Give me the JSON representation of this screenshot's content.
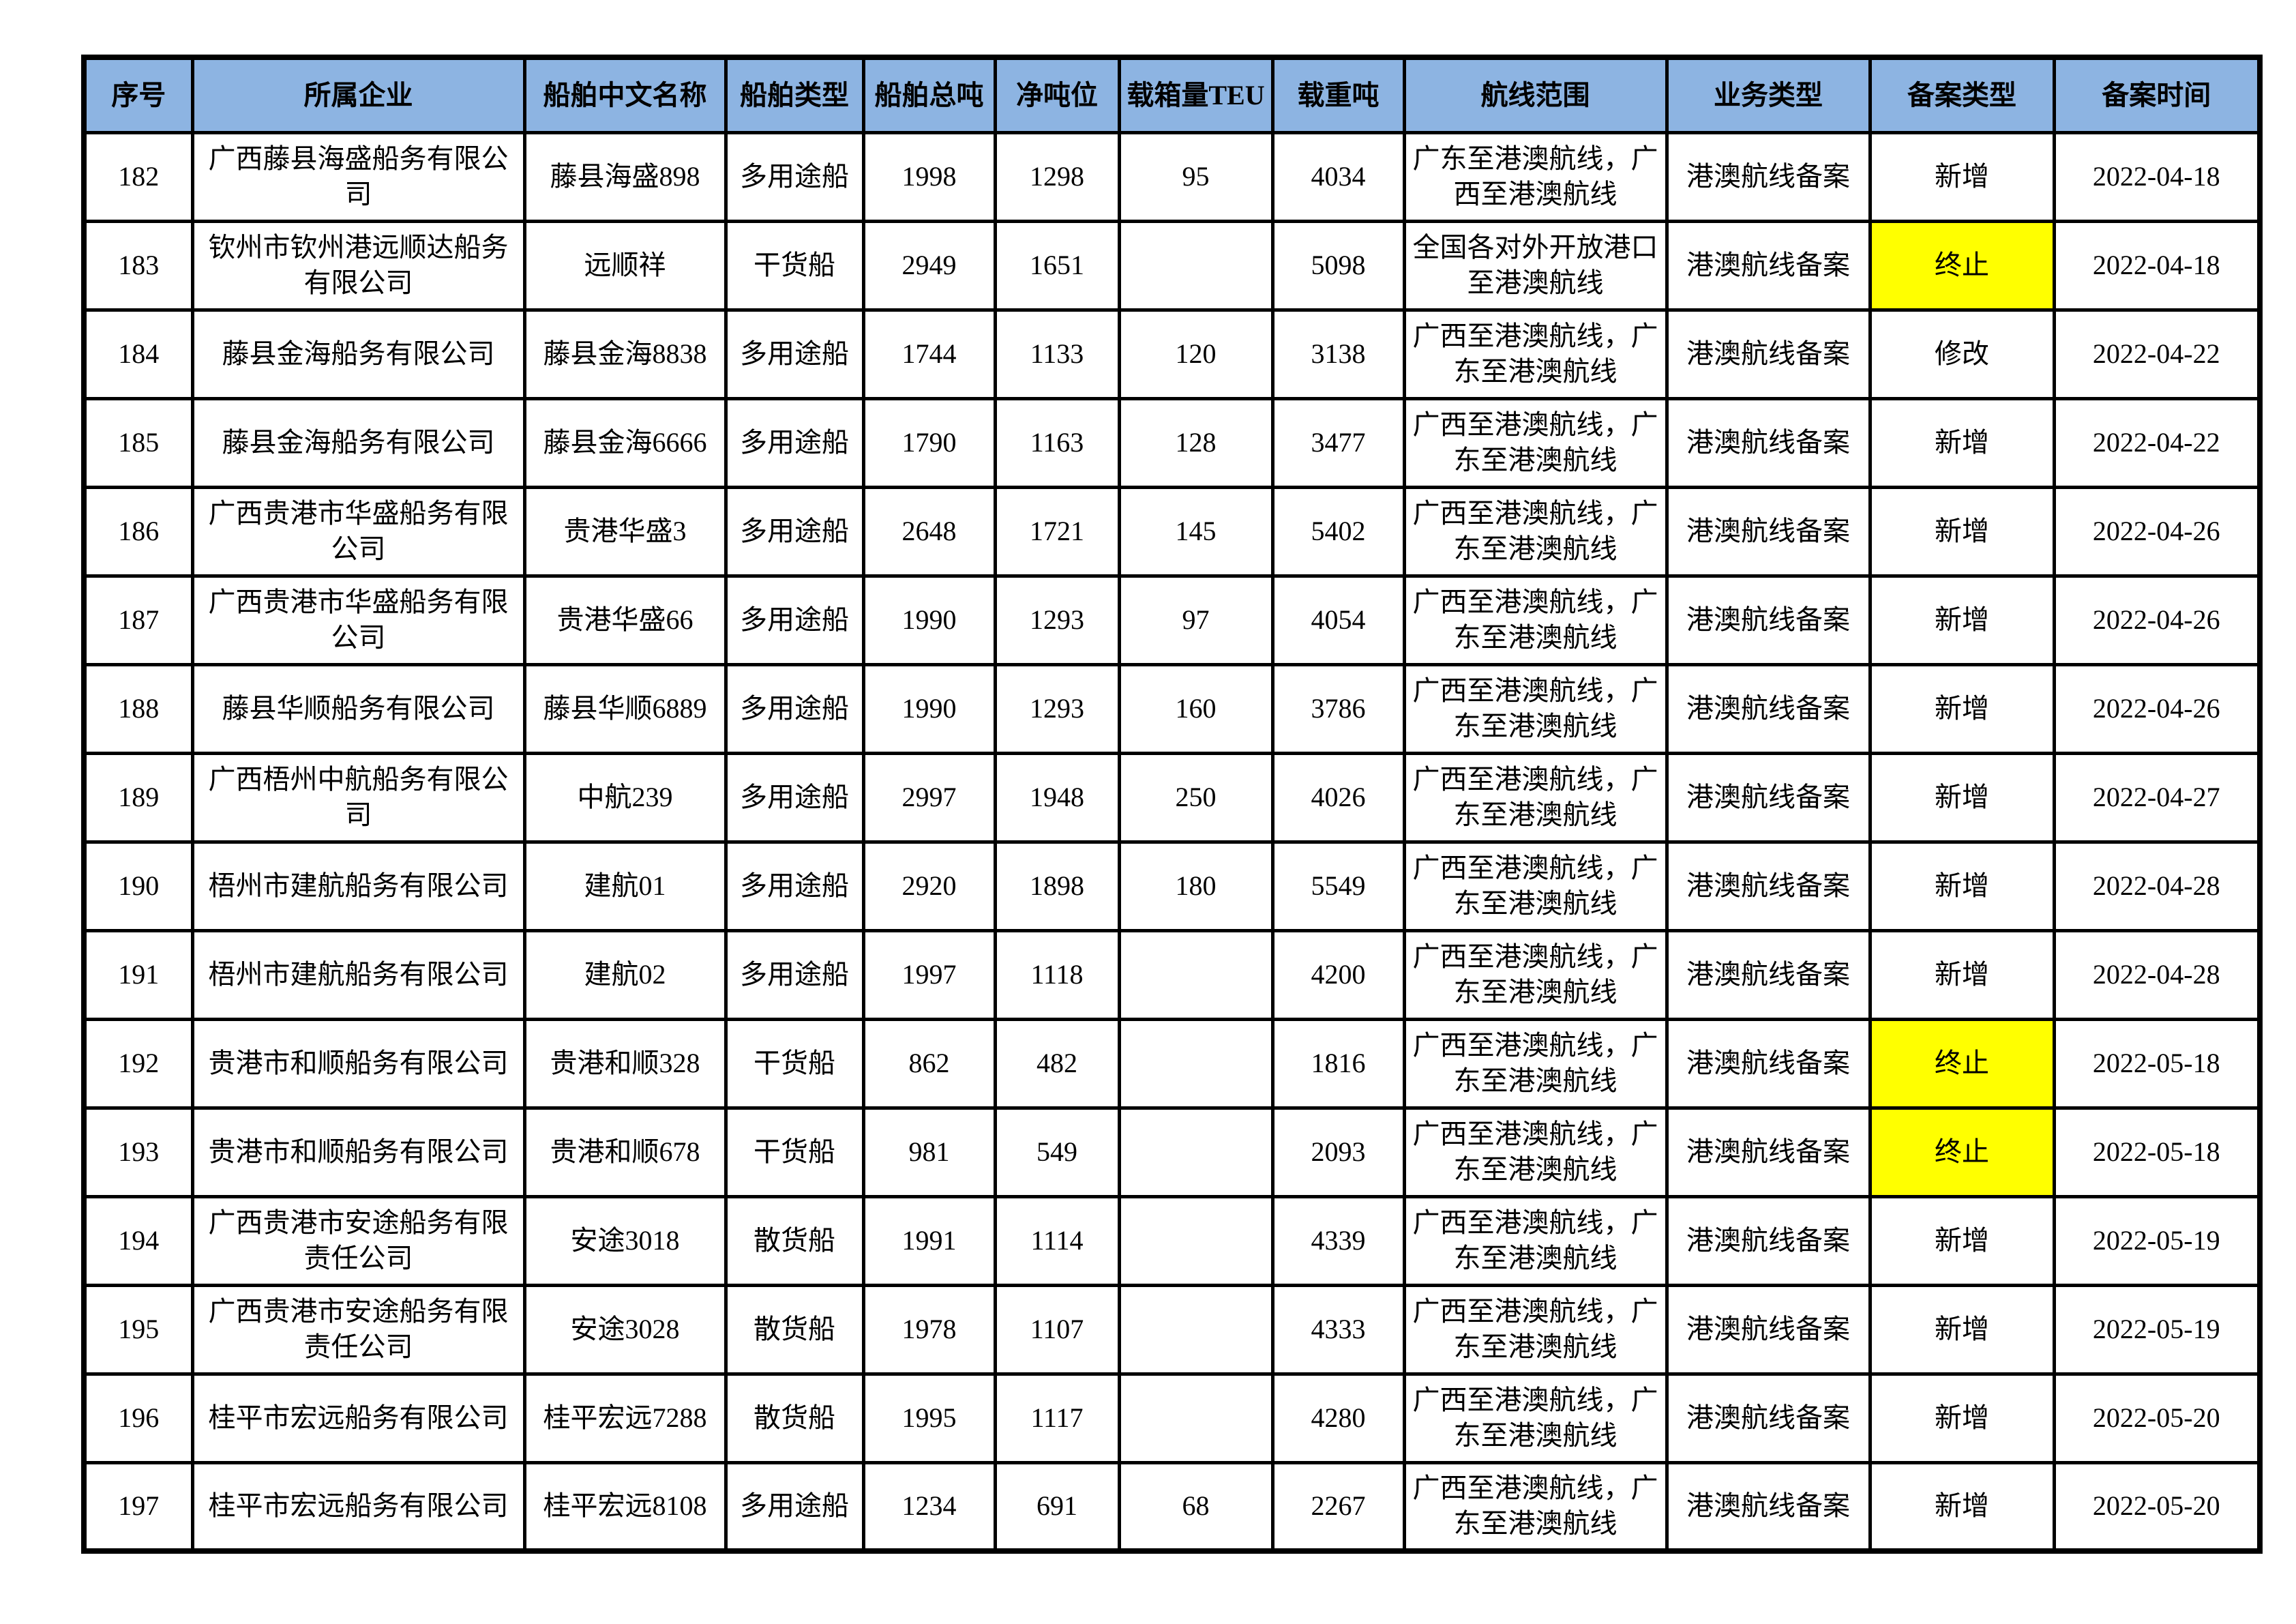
{
  "table": {
    "header_bg": "#8DB4E2",
    "highlight_color": "#FFFF00",
    "columns": [
      {
        "key": "seq",
        "label": "序号"
      },
      {
        "key": "company",
        "label": "所属企业"
      },
      {
        "key": "ship_name",
        "label": "船舶中文名称"
      },
      {
        "key": "ship_type",
        "label": "船舶类型"
      },
      {
        "key": "gross_tonnage",
        "label": "船舶总吨"
      },
      {
        "key": "net_tonnage",
        "label": "净吨位"
      },
      {
        "key": "teu",
        "label": "载箱量TEU"
      },
      {
        "key": "dwt",
        "label": "载重吨"
      },
      {
        "key": "route",
        "label": "航线范围"
      },
      {
        "key": "business_type",
        "label": "业务类型"
      },
      {
        "key": "filing_type",
        "label": "备案类型"
      },
      {
        "key": "filing_date",
        "label": "备案时间"
      }
    ],
    "rows": [
      {
        "seq": "182",
        "company": "广西藤县海盛船务有限公司",
        "ship_name": "藤县海盛898",
        "ship_type": "多用途船",
        "gross_tonnage": "1998",
        "net_tonnage": "1298",
        "teu": "95",
        "dwt": "4034",
        "route": "广东至港澳航线，广西至港澳航线",
        "business_type": "港澳航线备案",
        "filing_type": "新增",
        "filing_highlight": false,
        "filing_date": "2022-04-18"
      },
      {
        "seq": "183",
        "company": "钦州市钦州港远顺达船务有限公司",
        "ship_name": "远顺祥",
        "ship_type": "干货船",
        "gross_tonnage": "2949",
        "net_tonnage": "1651",
        "teu": "",
        "dwt": "5098",
        "route": "全国各对外开放港口至港澳航线",
        "business_type": "港澳航线备案",
        "filing_type": "终止",
        "filing_highlight": true,
        "filing_date": "2022-04-18"
      },
      {
        "seq": "184",
        "company": "藤县金海船务有限公司",
        "ship_name": "藤县金海8838",
        "ship_type": "多用途船",
        "gross_tonnage": "1744",
        "net_tonnage": "1133",
        "teu": "120",
        "dwt": "3138",
        "route": "广西至港澳航线，广东至港澳航线",
        "business_type": "港澳航线备案",
        "filing_type": "修改",
        "filing_highlight": false,
        "filing_date": "2022-04-22"
      },
      {
        "seq": "185",
        "company": "藤县金海船务有限公司",
        "ship_name": "藤县金海6666",
        "ship_type": "多用途船",
        "gross_tonnage": "1790",
        "net_tonnage": "1163",
        "teu": "128",
        "dwt": "3477",
        "route": "广西至港澳航线，广东至港澳航线",
        "business_type": "港澳航线备案",
        "filing_type": "新增",
        "filing_highlight": false,
        "filing_date": "2022-04-22"
      },
      {
        "seq": "186",
        "company": "广西贵港市华盛船务有限公司",
        "ship_name": "贵港华盛3",
        "ship_type": "多用途船",
        "gross_tonnage": "2648",
        "net_tonnage": "1721",
        "teu": "145",
        "dwt": "5402",
        "route": "广西至港澳航线，广东至港澳航线",
        "business_type": "港澳航线备案",
        "filing_type": "新增",
        "filing_highlight": false,
        "filing_date": "2022-04-26"
      },
      {
        "seq": "187",
        "company": "广西贵港市华盛船务有限公司",
        "ship_name": "贵港华盛66",
        "ship_type": "多用途船",
        "gross_tonnage": "1990",
        "net_tonnage": "1293",
        "teu": "97",
        "dwt": "4054",
        "route": "广西至港澳航线，广东至港澳航线",
        "business_type": "港澳航线备案",
        "filing_type": "新增",
        "filing_highlight": false,
        "filing_date": "2022-04-26"
      },
      {
        "seq": "188",
        "company": "藤县华顺船务有限公司",
        "ship_name": "藤县华顺6889",
        "ship_type": "多用途船",
        "gross_tonnage": "1990",
        "net_tonnage": "1293",
        "teu": "160",
        "dwt": "3786",
        "route": "广西至港澳航线，广东至港澳航线",
        "business_type": "港澳航线备案",
        "filing_type": "新增",
        "filing_highlight": false,
        "filing_date": "2022-04-26"
      },
      {
        "seq": "189",
        "company": "广西梧州中航船务有限公司",
        "ship_name": "中航239",
        "ship_type": "多用途船",
        "gross_tonnage": "2997",
        "net_tonnage": "1948",
        "teu": "250",
        "dwt": "4026",
        "route": "广西至港澳航线，广东至港澳航线",
        "business_type": "港澳航线备案",
        "filing_type": "新增",
        "filing_highlight": false,
        "filing_date": "2022-04-27"
      },
      {
        "seq": "190",
        "company": "梧州市建航船务有限公司",
        "ship_name": "建航01",
        "ship_type": "多用途船",
        "gross_tonnage": "2920",
        "net_tonnage": "1898",
        "teu": "180",
        "dwt": "5549",
        "route": "广西至港澳航线，广东至港澳航线",
        "business_type": "港澳航线备案",
        "filing_type": "新增",
        "filing_highlight": false,
        "filing_date": "2022-04-28"
      },
      {
        "seq": "191",
        "company": "梧州市建航船务有限公司",
        "ship_name": "建航02",
        "ship_type": "多用途船",
        "gross_tonnage": "1997",
        "net_tonnage": "1118",
        "teu": "",
        "dwt": "4200",
        "route": "广西至港澳航线，广东至港澳航线",
        "business_type": "港澳航线备案",
        "filing_type": "新增",
        "filing_highlight": false,
        "filing_date": "2022-04-28"
      },
      {
        "seq": "192",
        "company": "贵港市和顺船务有限公司",
        "ship_name": "贵港和顺328",
        "ship_type": "干货船",
        "gross_tonnage": "862",
        "net_tonnage": "482",
        "teu": "",
        "dwt": "1816",
        "route": "广西至港澳航线，广东至港澳航线",
        "business_type": "港澳航线备案",
        "filing_type": "终止",
        "filing_highlight": true,
        "filing_date": "2022-05-18"
      },
      {
        "seq": "193",
        "company": "贵港市和顺船务有限公司",
        "ship_name": "贵港和顺678",
        "ship_type": "干货船",
        "gross_tonnage": "981",
        "net_tonnage": "549",
        "teu": "",
        "dwt": "2093",
        "route": "广西至港澳航线，广东至港澳航线",
        "business_type": "港澳航线备案",
        "filing_type": "终止",
        "filing_highlight": true,
        "filing_date": "2022-05-18"
      },
      {
        "seq": "194",
        "company": "广西贵港市安途船务有限责任公司",
        "ship_name": "安途3018",
        "ship_type": "散货船",
        "gross_tonnage": "1991",
        "net_tonnage": "1114",
        "teu": "",
        "dwt": "4339",
        "route": "广西至港澳航线，广东至港澳航线",
        "business_type": "港澳航线备案",
        "filing_type": "新增",
        "filing_highlight": false,
        "filing_date": "2022-05-19"
      },
      {
        "seq": "195",
        "company": "广西贵港市安途船务有限责任公司",
        "ship_name": "安途3028",
        "ship_type": "散货船",
        "gross_tonnage": "1978",
        "net_tonnage": "1107",
        "teu": "",
        "dwt": "4333",
        "route": "广西至港澳航线，广东至港澳航线",
        "business_type": "港澳航线备案",
        "filing_type": "新增",
        "filing_highlight": false,
        "filing_date": "2022-05-19"
      },
      {
        "seq": "196",
        "company": "桂平市宏远船务有限公司",
        "ship_name": "桂平宏远7288",
        "ship_type": "散货船",
        "gross_tonnage": "1995",
        "net_tonnage": "1117",
        "teu": "",
        "dwt": "4280",
        "route": "广西至港澳航线，广东至港澳航线",
        "business_type": "港澳航线备案",
        "filing_type": "新增",
        "filing_highlight": false,
        "filing_date": "2022-05-20"
      },
      {
        "seq": "197",
        "company": "桂平市宏远船务有限公司",
        "ship_name": "桂平宏远8108",
        "ship_type": "多用途船",
        "gross_tonnage": "1234",
        "net_tonnage": "691",
        "teu": "68",
        "dwt": "2267",
        "route": "广西至港澳航线，广东至港澳航线",
        "business_type": "港澳航线备案",
        "filing_type": "新增",
        "filing_highlight": false,
        "filing_date": "2022-05-20"
      }
    ]
  }
}
